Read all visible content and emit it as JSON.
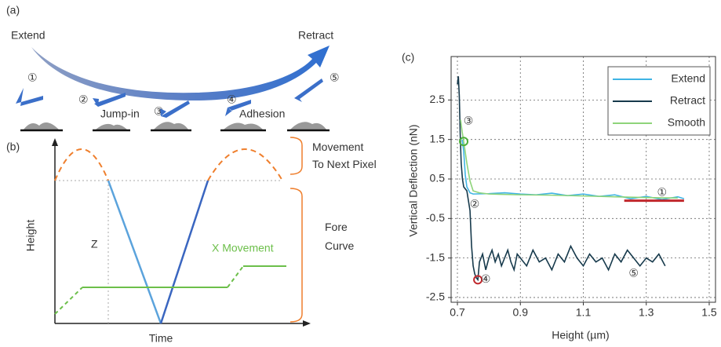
{
  "panel_a": {
    "label": "(a)",
    "extend": "Extend",
    "retract": "Retract",
    "steps": [
      "①",
      "②",
      "③",
      "④",
      "⑤"
    ],
    "jump_in": "Jump-in",
    "adhesion": "Adhesion"
  },
  "panel_b": {
    "label": "(b)",
    "movement": [
      "Movement",
      "To Next Pixel"
    ],
    "y_label": "Height",
    "z": "Z",
    "x_movement": "X Movement",
    "fore_curve": [
      "Fore",
      "Curve"
    ],
    "x_label": "Time"
  },
  "chart_data": {
    "type": "line",
    "label": "(c)",
    "x_label": "Height (µm)",
    "y_label": "Vertical Deflection (nN)",
    "xlim": [
      0.68,
      1.52
    ],
    "xticks": [
      0.7,
      0.9,
      1.1,
      1.3,
      1.5
    ],
    "ylim": [
      -2.62,
      3.6
    ],
    "yticks": [
      2.5,
      1.5,
      0.5,
      -0.5,
      -1.5,
      -2.5
    ],
    "grid": true,
    "legend": "upper right",
    "series": [
      {
        "name": "Extend",
        "color": "#3fb4e4",
        "x": [
          0.715,
          0.72,
          0.725,
          0.73,
          0.74,
          0.75,
          0.8,
          0.85,
          0.9,
          0.95,
          1.0,
          1.05,
          1.1,
          1.15,
          1.2,
          1.25,
          1.3,
          1.35,
          1.4,
          1.42
        ],
        "values": [
          1.5,
          1.2,
          0.6,
          0.3,
          0.15,
          0.12,
          0.13,
          0.15,
          0.12,
          0.1,
          0.14,
          0.08,
          0.12,
          0.06,
          0.1,
          0.0,
          0.06,
          -0.02,
          0.05,
          0.0
        ]
      },
      {
        "name": "Retract",
        "color": "#173a4c",
        "x": [
          0.7,
          0.703,
          0.706,
          0.709,
          0.712,
          0.716,
          0.72,
          0.73,
          0.74,
          0.745,
          0.75,
          0.755,
          0.76,
          0.765,
          0.77,
          0.78,
          0.79,
          0.8,
          0.81,
          0.82,
          0.83,
          0.84,
          0.85,
          0.86,
          0.87,
          0.88,
          0.89,
          0.9,
          0.92,
          0.94,
          0.96,
          0.98,
          1.0,
          1.02,
          1.04,
          1.06,
          1.08,
          1.1,
          1.12,
          1.14,
          1.16,
          1.18,
          1.2,
          1.22,
          1.24,
          1.26,
          1.28,
          1.3,
          1.32,
          1.34,
          1.36
        ],
        "values": [
          2.9,
          3.1,
          2.6,
          1.6,
          0.9,
          0.5,
          0.3,
          0.2,
          -0.3,
          -1.2,
          -1.7,
          -1.9,
          -2.0,
          -2.05,
          -1.6,
          -1.4,
          -1.8,
          -1.5,
          -1.3,
          -1.6,
          -1.4,
          -1.7,
          -1.5,
          -1.3,
          -1.6,
          -1.8,
          -1.4,
          -1.5,
          -1.7,
          -1.3,
          -1.6,
          -1.5,
          -1.8,
          -1.4,
          -1.6,
          -1.2,
          -1.5,
          -1.7,
          -1.4,
          -1.6,
          -1.5,
          -1.8,
          -1.4,
          -1.6,
          -1.3,
          -1.5,
          -1.7,
          -1.5,
          -1.6,
          -1.4,
          -1.7
        ]
      },
      {
        "name": "Smooth",
        "color": "#8ed47a",
        "x": [
          0.71,
          0.715,
          0.72,
          0.73,
          0.74,
          0.75,
          0.77,
          0.8,
          0.9,
          1.0,
          1.1,
          1.2,
          1.3,
          1.4
        ],
        "values": [
          2.0,
          1.7,
          1.45,
          0.9,
          0.45,
          0.2,
          0.15,
          0.12,
          0.1,
          0.09,
          0.07,
          0.05,
          0.03,
          0.02
        ]
      }
    ],
    "annotations": [
      {
        "text": "①",
        "x": 1.35,
        "y": 0.15
      },
      {
        "text": "②",
        "x": 0.755,
        "y": -0.15
      },
      {
        "text": "③",
        "x": 0.735,
        "y": 1.95
      },
      {
        "text": "④",
        "x": 0.79,
        "y": -2.05
      },
      {
        "text": "⑤",
        "x": 1.26,
        "y": -1.9
      }
    ],
    "points": [
      {
        "x": 0.72,
        "y": 1.45,
        "color": "#4caf3a"
      },
      {
        "x": 0.765,
        "y": -2.05,
        "color": "#c0282c"
      }
    ],
    "segment": {
      "x": [
        1.23,
        1.42
      ],
      "y": -0.05,
      "color": "#c0282c"
    }
  }
}
